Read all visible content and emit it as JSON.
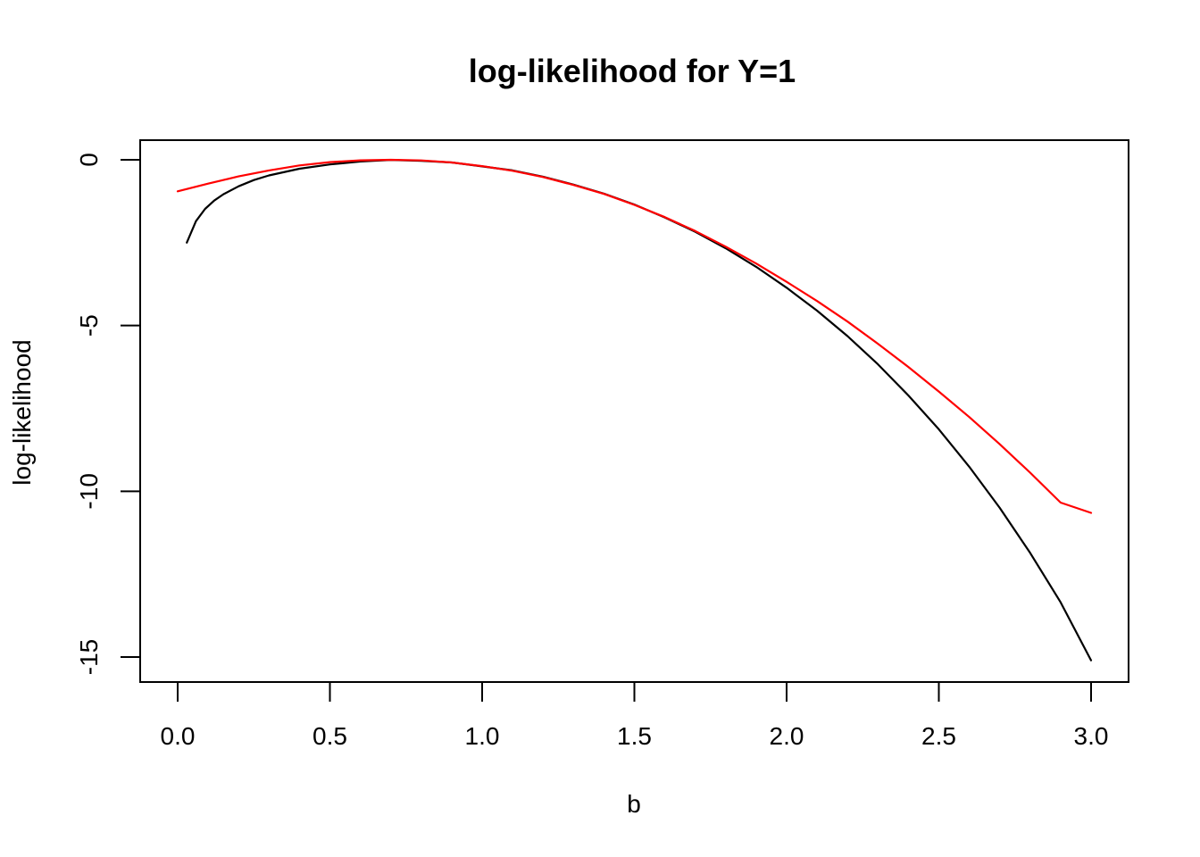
{
  "chart_data": {
    "type": "line",
    "title": "log-likelihood for Y=1",
    "xlabel": "b",
    "ylabel": "log-likelihood",
    "xlim": [
      0,
      3
    ],
    "ylim": [
      -15.5,
      0.5
    ],
    "x_ticks": [
      0.0,
      0.5,
      1.0,
      1.5,
      2.0,
      2.5,
      3.0
    ],
    "x_tick_labels": [
      "0.0",
      "0.5",
      "1.0",
      "1.5",
      "2.0",
      "2.5",
      "3.0"
    ],
    "y_ticks": [
      0,
      -5,
      -10,
      -15
    ],
    "y_tick_labels": [
      "0",
      "-5",
      "-10",
      "-15"
    ],
    "grid": false,
    "legend": "none",
    "series": [
      {
        "color": "#000000",
        "x": [
          0.03,
          0.06,
          0.09,
          0.12,
          0.15,
          0.2,
          0.25,
          0.3,
          0.4,
          0.5,
          0.6,
          0.7,
          0.8,
          0.9,
          1.0,
          1.1,
          1.2,
          1.3,
          1.4,
          1.5,
          1.6,
          1.7,
          1.8,
          1.9,
          2.0,
          2.1,
          2.2,
          2.3,
          2.4,
          2.5,
          2.6,
          2.7,
          2.8,
          2.9,
          3.0
        ],
        "values": [
          -2.5,
          -1.85,
          -1.48,
          -1.23,
          -1.04,
          -0.8,
          -0.61,
          -0.47,
          -0.27,
          -0.14,
          -0.05,
          -0.005,
          -0.03,
          -0.08,
          -0.2,
          -0.32,
          -0.51,
          -0.75,
          -1.02,
          -1.35,
          -1.74,
          -2.17,
          -2.67,
          -3.23,
          -3.86,
          -4.55,
          -5.32,
          -6.17,
          -7.11,
          -8.13,
          -9.26,
          -10.5,
          -11.86,
          -13.35,
          -15.1
        ]
      },
      {
        "color": "#ff0000",
        "x": [
          0.0,
          0.1,
          0.2,
          0.3,
          0.4,
          0.5,
          0.6,
          0.7,
          0.8,
          0.9,
          1.0,
          1.1,
          1.2,
          1.3,
          1.4,
          1.5,
          1.6,
          1.7,
          1.8,
          1.9,
          2.0,
          2.1,
          2.2,
          2.3,
          2.4,
          2.5,
          2.6,
          2.7,
          2.8,
          2.9,
          3.0
        ],
        "values": [
          -0.95,
          -0.72,
          -0.5,
          -0.32,
          -0.17,
          -0.07,
          -0.015,
          0.0,
          -0.02,
          -0.08,
          -0.19,
          -0.33,
          -0.52,
          -0.76,
          -1.03,
          -1.36,
          -1.73,
          -2.15,
          -2.62,
          -3.13,
          -3.68,
          -4.26,
          -4.88,
          -5.55,
          -6.25,
          -6.99,
          -7.76,
          -8.58,
          -9.44,
          -10.34,
          -10.65
        ]
      }
    ]
  }
}
